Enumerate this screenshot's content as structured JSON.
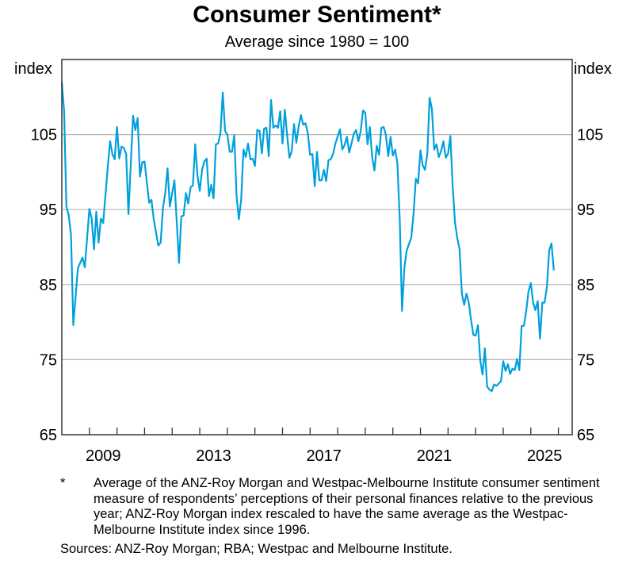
{
  "chart_data": {
    "type": "line",
    "title": "Consumer Sentiment*",
    "subtitle": "Average since 1980 = 100",
    "ylabel_left": "index",
    "ylabel_right": "index",
    "ylim": [
      65,
      115
    ],
    "yticks": [
      65,
      75,
      85,
      95,
      105
    ],
    "xlim": [
      "2008-01",
      "2026-07"
    ],
    "xtick_labels": [
      "2009",
      "2013",
      "2017",
      "2021",
      "2025"
    ],
    "grid": true,
    "line_color": "#00a0dc",
    "series": [
      {
        "points": [
          [
            "2008-01",
            112.0
          ],
          [
            "2008-02",
            108.1
          ],
          [
            "2008-03",
            95.4
          ],
          [
            "2008-04",
            94.2
          ],
          [
            "2008-05",
            91.6
          ],
          [
            "2008-06",
            79.6
          ],
          [
            "2008-08",
            87.2
          ],
          [
            "2008-10",
            88.6
          ],
          [
            "2008-11",
            87.3
          ],
          [
            "2009-01",
            95.1
          ],
          [
            "2009-02",
            93.8
          ],
          [
            "2009-03",
            89.7
          ],
          [
            "2009-04",
            94.7
          ],
          [
            "2009-05",
            90.6
          ],
          [
            "2009-06",
            93.8
          ],
          [
            "2009-07",
            93.2
          ],
          [
            "2009-09",
            100.7
          ],
          [
            "2009-10",
            104.1
          ],
          [
            "2009-11",
            102.4
          ],
          [
            "2009-12",
            101.7
          ],
          [
            "2010-01",
            106.0
          ],
          [
            "2010-02",
            101.8
          ],
          [
            "2010-03",
            103.4
          ],
          [
            "2010-04",
            103.2
          ],
          [
            "2010-05",
            102.4
          ],
          [
            "2010-06",
            94.4
          ],
          [
            "2010-08",
            107.5
          ],
          [
            "2010-09",
            105.6
          ],
          [
            "2010-10",
            107.2
          ],
          [
            "2010-11",
            99.4
          ],
          [
            "2010-12",
            101.3
          ],
          [
            "2011-01",
            101.4
          ],
          [
            "2011-03",
            95.9
          ],
          [
            "2011-04",
            96.3
          ],
          [
            "2011-05",
            93.7
          ],
          [
            "2011-07",
            90.2
          ],
          [
            "2011-08",
            90.6
          ],
          [
            "2011-09",
            95.2
          ],
          [
            "2011-10",
            97.2
          ],
          [
            "2011-11",
            100.5
          ],
          [
            "2011-12",
            95.4
          ],
          [
            "2012-02",
            98.9
          ],
          [
            "2012-04",
            87.9
          ],
          [
            "2012-05",
            94.1
          ],
          [
            "2012-06",
            94.2
          ],
          [
            "2012-07",
            97.2
          ],
          [
            "2012-08",
            95.8
          ],
          [
            "2012-09",
            98.0
          ],
          [
            "2012-10",
            98.2
          ],
          [
            "2012-11",
            103.7
          ],
          [
            "2012-12",
            99.5
          ],
          [
            "2013-01",
            97.5
          ],
          [
            "2013-02",
            100.3
          ],
          [
            "2013-03",
            101.4
          ],
          [
            "2013-04",
            101.8
          ],
          [
            "2013-05",
            96.8
          ],
          [
            "2013-06",
            98.3
          ],
          [
            "2013-07",
            96.5
          ],
          [
            "2013-08",
            103.7
          ],
          [
            "2013-09",
            103.8
          ],
          [
            "2013-10",
            105.2
          ],
          [
            "2013-11",
            110.6
          ],
          [
            "2013-12",
            105.5
          ],
          [
            "2014-01",
            105.0
          ],
          [
            "2014-02",
            102.7
          ],
          [
            "2014-03",
            102.7
          ],
          [
            "2014-04",
            104.9
          ],
          [
            "2014-05",
            96.8
          ],
          [
            "2014-06",
            93.7
          ],
          [
            "2014-07",
            96.3
          ],
          [
            "2014-08",
            103.0
          ],
          [
            "2014-09",
            102.0
          ],
          [
            "2014-10",
            103.8
          ],
          [
            "2014-11",
            101.7
          ],
          [
            "2014-12",
            101.8
          ],
          [
            "2015-01",
            100.8
          ],
          [
            "2015-02",
            105.6
          ],
          [
            "2015-03",
            105.5
          ],
          [
            "2015-04",
            102.5
          ],
          [
            "2015-05",
            105.8
          ],
          [
            "2015-06",
            105.9
          ],
          [
            "2015-07",
            102.1
          ],
          [
            "2015-08",
            109.6
          ],
          [
            "2015-09",
            105.9
          ],
          [
            "2015-10",
            106.2
          ],
          [
            "2015-11",
            105.9
          ],
          [
            "2015-12",
            108.1
          ],
          [
            "2016-01",
            103.8
          ],
          [
            "2016-02",
            108.3
          ],
          [
            "2016-03",
            104.9
          ],
          [
            "2016-04",
            101.9
          ],
          [
            "2016-05",
            102.8
          ],
          [
            "2016-06",
            106.4
          ],
          [
            "2016-07",
            103.9
          ],
          [
            "2016-08",
            106.0
          ],
          [
            "2016-09",
            107.6
          ],
          [
            "2016-10",
            106.3
          ],
          [
            "2016-11",
            106.5
          ],
          [
            "2016-12",
            105.2
          ],
          [
            "2017-01",
            102.3
          ],
          [
            "2017-02",
            102.4
          ],
          [
            "2017-03",
            98.1
          ],
          [
            "2017-04",
            102.7
          ],
          [
            "2017-05",
            98.9
          ],
          [
            "2017-06",
            98.9
          ],
          [
            "2017-07",
            100.3
          ],
          [
            "2017-08",
            98.8
          ],
          [
            "2017-09",
            101.6
          ],
          [
            "2017-10",
            101.7
          ],
          [
            "2017-11",
            102.4
          ],
          [
            "2017-12",
            103.8
          ],
          [
            "2018-02",
            105.7
          ],
          [
            "2018-03",
            103.0
          ],
          [
            "2018-04",
            103.6
          ],
          [
            "2018-05",
            104.7
          ],
          [
            "2018-06",
            102.6
          ],
          [
            "2018-07",
            103.8
          ],
          [
            "2018-08",
            105.1
          ],
          [
            "2018-09",
            105.6
          ],
          [
            "2018-10",
            104.1
          ],
          [
            "2018-11",
            105.4
          ],
          [
            "2018-12",
            108.2
          ],
          [
            "2019-01",
            107.9
          ],
          [
            "2019-02",
            103.7
          ],
          [
            "2019-03",
            106.0
          ],
          [
            "2019-04",
            102.0
          ],
          [
            "2019-05",
            100.2
          ],
          [
            "2019-06",
            103.5
          ],
          [
            "2019-07",
            102.3
          ],
          [
            "2019-08",
            105.9
          ],
          [
            "2019-09",
            106.0
          ],
          [
            "2019-10",
            104.9
          ],
          [
            "2019-11",
            102.1
          ],
          [
            "2019-12",
            104.7
          ],
          [
            "2020-01",
            102.2
          ],
          [
            "2020-02",
            103.0
          ],
          [
            "2020-03",
            101.1
          ],
          [
            "2020-04",
            93.7
          ],
          [
            "2020-05",
            81.5
          ],
          [
            "2020-06",
            87.2
          ],
          [
            "2020-07",
            89.5
          ],
          [
            "2020-08",
            90.4
          ],
          [
            "2020-09",
            91.2
          ],
          [
            "2020-10",
            94.4
          ],
          [
            "2020-11",
            99.1
          ],
          [
            "2020-12",
            98.5
          ],
          [
            "2021-01",
            102.9
          ],
          [
            "2021-02",
            100.9
          ],
          [
            "2021-03",
            100.3
          ],
          [
            "2021-04",
            102.4
          ],
          [
            "2021-05",
            109.9
          ],
          [
            "2021-06",
            108.4
          ],
          [
            "2021-07",
            103.0
          ],
          [
            "2021-08",
            103.7
          ],
          [
            "2021-09",
            102.0
          ],
          [
            "2021-10",
            102.8
          ],
          [
            "2021-11",
            104.1
          ],
          [
            "2021-12",
            101.9
          ],
          [
            "2022-01",
            102.5
          ],
          [
            "2022-02",
            104.8
          ],
          [
            "2022-03",
            98.1
          ],
          [
            "2022-04",
            93.3
          ],
          [
            "2022-05",
            91.2
          ],
          [
            "2022-06",
            89.7
          ],
          [
            "2022-07",
            83.8
          ],
          [
            "2022-08",
            82.3
          ],
          [
            "2022-09",
            83.8
          ],
          [
            "2022-10",
            82.6
          ],
          [
            "2022-11",
            80.3
          ],
          [
            "2022-12",
            78.3
          ],
          [
            "2023-01",
            78.2
          ],
          [
            "2023-02",
            79.6
          ],
          [
            "2023-03",
            74.9
          ],
          [
            "2023-04",
            73.0
          ],
          [
            "2023-05",
            76.5
          ],
          [
            "2023-06",
            71.4
          ],
          [
            "2023-07",
            71.0
          ],
          [
            "2023-08",
            70.8
          ],
          [
            "2023-09",
            71.7
          ],
          [
            "2023-10",
            71.5
          ],
          [
            "2023-11",
            71.8
          ],
          [
            "2023-12",
            72.1
          ],
          [
            "2024-01",
            74.8
          ],
          [
            "2024-02",
            73.5
          ],
          [
            "2024-03",
            74.4
          ],
          [
            "2024-04",
            73.1
          ],
          [
            "2024-05",
            73.8
          ],
          [
            "2024-06",
            73.6
          ],
          [
            "2024-07",
            75.1
          ],
          [
            "2024-08",
            73.6
          ],
          [
            "2024-09",
            79.5
          ],
          [
            "2024-10",
            79.5
          ],
          [
            "2024-11",
            81.5
          ],
          [
            "2024-12",
            84.1
          ],
          [
            "2025-01",
            85.2
          ],
          [
            "2025-02",
            82.6
          ],
          [
            "2025-03",
            81.6
          ],
          [
            "2025-04",
            82.8
          ],
          [
            "2025-05",
            77.8
          ],
          [
            "2025-06",
            82.6
          ],
          [
            "2025-07",
            82.6
          ],
          [
            "2025-08",
            84.7
          ],
          [
            "2025-09",
            89.6
          ],
          [
            "2025-10",
            90.5
          ],
          [
            "2025-11",
            86.9
          ]
        ]
      }
    ]
  },
  "notes": {
    "footnote_mark": "*",
    "footnote": "Average of the ANZ-Roy Morgan and Westpac-Melbourne Institute consumer sentiment measure of respondents’ perceptions of their personal finances relative to the previous year; ANZ-Roy Morgan index rescaled to have the same average as the Westpac-Melbourne Institute index since 1996.",
    "sources": "Sources: ANZ-Roy Morgan; RBA; Westpac and Melbourne Institute."
  }
}
